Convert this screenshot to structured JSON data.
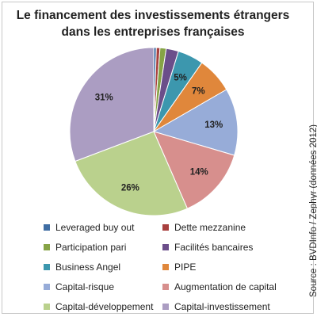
{
  "chart_data": {
    "type": "pie",
    "title": [
      "Le financement des investissements étrangers",
      "dans les entreprises françaises"
    ],
    "source": "Source : BVDInfo / Zephyr (données 2012)",
    "legend_position": "bottom",
    "slices": [
      {
        "name": "Leveraged buy out",
        "value": 0.5,
        "label": "",
        "color": "#3f6da3"
      },
      {
        "name": "Dette mezzanine",
        "value": 0.7,
        "label": "",
        "color": "#a8403e"
      },
      {
        "name": "Participation pari",
        "value": 1.2,
        "label": "",
        "color": "#86a346"
      },
      {
        "name": "Facilités bancaires",
        "value": 2.4,
        "label": "",
        "color": "#6b4e8a"
      },
      {
        "name": "Business Angel",
        "value": 5,
        "label": "5%",
        "color": "#3c97ae"
      },
      {
        "name": "PIPE",
        "value": 7,
        "label": "7%",
        "color": "#e0873b"
      },
      {
        "name": "Capital-risque",
        "value": 13,
        "label": "13%",
        "color": "#97acd8"
      },
      {
        "name": "Augmentation de capital",
        "value": 14,
        "label": "14%",
        "color": "#d78f8d"
      },
      {
        "name": "Capital-développement",
        "value": 26,
        "label": "26%",
        "color": "#bad18d"
      },
      {
        "name": "Capital-investissement",
        "value": 31,
        "label": "31%",
        "color": "#ab9dc2"
      }
    ]
  }
}
